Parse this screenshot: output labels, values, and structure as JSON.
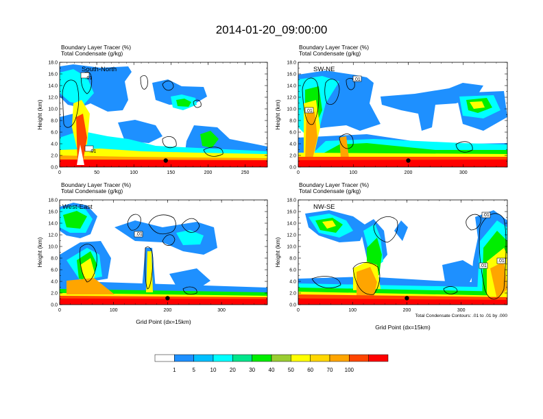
{
  "figure": {
    "title": "2014-01-20_09:00:00",
    "note": "Total Condensate Contours: .01 to .01 by .000"
  },
  "panels": [
    {
      "id": "sn",
      "sector": "South-North",
      "subtitle1": "Boundary Layer Tracer    (%)",
      "subtitle2": "Total Condensate   (g/kg)",
      "ylabel": "Height (km)",
      "xlabel": "",
      "xticks": [
        "0",
        "50",
        "100",
        "150",
        "200",
        "250"
      ],
      "contour_labels": [
        ".01",
        ".01"
      ]
    },
    {
      "id": "swne",
      "sector": "SW-NE",
      "subtitle1": "Boundary Layer Tracer    (%)",
      "subtitle2": "Total Condensate   (g/kg)",
      "ylabel": "Height (km)",
      "xlabel": "",
      "xticks": [
        "0",
        "100",
        "200",
        "300"
      ],
      "contour_labels": [
        ".01",
        ".01"
      ]
    },
    {
      "id": "we",
      "sector": "West-East",
      "subtitle1": "Boundary Layer Tracer    (%)",
      "subtitle2": "Total Condensate   (g/kg)",
      "ylabel": "Height (km)",
      "xlabel": "Grid Point (dx=15km)",
      "xticks": [
        "0",
        "100",
        "200",
        "300"
      ],
      "contour_labels": [
        ".01"
      ]
    },
    {
      "id": "nwse",
      "sector": "NW-SE",
      "subtitle1": "Boundary Layer Tracer    (%)",
      "subtitle2": "Total Condensate   (g/kg)",
      "ylabel": "Height (km)",
      "xlabel": "Grid Point (dx=15km)",
      "xticks": [
        "0",
        "100",
        "200",
        "300"
      ],
      "contour_labels": [
        ".01",
        ".01",
        ".01"
      ]
    }
  ],
  "yticks": [
    "0.0",
    "2.0",
    "4.0",
    "6.0",
    "8.0",
    "10.0",
    "12.0",
    "14.0",
    "16.0",
    "18.0"
  ],
  "colorbar": {
    "labels": [
      "1",
      "5",
      "10",
      "20",
      "30",
      "40",
      "50",
      "60",
      "70",
      "100"
    ],
    "colors": [
      "#ffffff",
      "#1e90ff",
      "#00bfff",
      "#00ffff",
      "#00e68c",
      "#00ee00",
      "#9acd32",
      "#ffff00",
      "#ffd700",
      "#ffa500",
      "#ff4500",
      "#ff0000"
    ]
  },
  "chart_data": [
    {
      "type": "heatmap",
      "title": "South-North",
      "xlabel": "",
      "ylabel": "Height (km)",
      "xlim": [
        0,
        280
      ],
      "ylim": [
        0,
        18
      ],
      "x_ticks": [
        0,
        50,
        100,
        150,
        200,
        250
      ],
      "y_ticks": [
        0,
        2,
        4,
        6,
        8,
        10,
        12,
        14,
        16,
        18
      ],
      "colorbar_levels": [
        1,
        5,
        10,
        20,
        30,
        40,
        50,
        60,
        70,
        100
      ],
      "features": [
        {
          "x": [
            0,
            280
          ],
          "z": [
            0,
            1.0
          ],
          "tracer_percent": 100
        },
        {
          "x": [
            20,
            40
          ],
          "z": [
            1,
            6
          ],
          "tracer_percent": 70
        },
        {
          "x": [
            0,
            100
          ],
          "z": [
            13,
            17
          ],
          "tracer_percent": 5
        },
        {
          "x": [
            130,
            200
          ],
          "z": [
            9,
            14
          ],
          "tracer_percent": 5
        },
        {
          "x": [
            160,
            190
          ],
          "z": [
            10,
            11.5
          ],
          "tracer_percent": 40
        },
        {
          "x": [
            180,
            280
          ],
          "z": [
            1,
            7
          ],
          "tracer_percent": 20
        }
      ],
      "marker": {
        "x": 143,
        "z": 1.0
      }
    },
    {
      "type": "heatmap",
      "title": "SW-NE",
      "xlabel": "",
      "ylabel": "Height (km)",
      "xlim": [
        0,
        380
      ],
      "ylim": [
        0,
        18
      ],
      "x_ticks": [
        0,
        100,
        200,
        300
      ],
      "y_ticks": [
        0,
        2,
        4,
        6,
        8,
        10,
        12,
        14,
        16,
        18
      ],
      "colorbar_levels": [
        1,
        5,
        10,
        20,
        30,
        40,
        50,
        60,
        70,
        100
      ],
      "features": [
        {
          "x": [
            0,
            380
          ],
          "z": [
            0,
            1.0
          ],
          "tracer_percent": 100
        },
        {
          "x": [
            10,
            50
          ],
          "z": [
            1,
            10
          ],
          "tracer_percent": 60
        },
        {
          "x": [
            0,
            140
          ],
          "z": [
            12,
            17
          ],
          "tracer_percent": 5
        },
        {
          "x": [
            250,
            350
          ],
          "z": [
            9,
            14
          ],
          "tracer_percent": 20
        },
        {
          "x": [
            300,
            380
          ],
          "z": [
            1,
            4
          ],
          "tracer_percent": 30
        }
      ],
      "marker": {
        "x": 200,
        "z": 1.0
      }
    },
    {
      "type": "heatmap",
      "title": "West-East",
      "xlabel": "Grid Point (dx=15km)",
      "ylabel": "Height (km)",
      "xlim": [
        0,
        385
      ],
      "ylim": [
        0,
        18
      ],
      "x_ticks": [
        0,
        100,
        200,
        300
      ],
      "y_ticks": [
        0,
        2,
        4,
        6,
        8,
        10,
        12,
        14,
        16,
        18
      ],
      "colorbar_levels": [
        1,
        5,
        10,
        20,
        30,
        40,
        50,
        60,
        70,
        100
      ],
      "features": [
        {
          "x": [
            0,
            385
          ],
          "z": [
            0,
            1.0
          ],
          "tracer_percent": 100
        },
        {
          "x": [
            20,
            60
          ],
          "z": [
            1,
            9
          ],
          "tracer_percent": 60
        },
        {
          "x": [
            0,
            70
          ],
          "z": [
            12,
            17
          ],
          "tracer_percent": 20
        },
        {
          "x": [
            130,
            140
          ],
          "z": [
            1,
            9
          ],
          "tracer_percent": 50
        },
        {
          "x": [
            160,
            240
          ],
          "z": [
            9,
            14
          ],
          "tracer_percent": 10
        }
      ],
      "marker": {
        "x": 200,
        "z": 1.0
      }
    },
    {
      "type": "heatmap",
      "title": "NW-SE",
      "xlabel": "Grid Point (dx=15km)",
      "ylabel": "Height (km)",
      "xlim": [
        0,
        385
      ],
      "ylim": [
        0,
        18
      ],
      "x_ticks": [
        0,
        100,
        200,
        300
      ],
      "y_ticks": [
        0,
        2,
        4,
        6,
        8,
        10,
        12,
        14,
        16,
        18
      ],
      "colorbar_levels": [
        1,
        5,
        10,
        20,
        30,
        40,
        50,
        60,
        70,
        100
      ],
      "features": [
        {
          "x": [
            0,
            385
          ],
          "z": [
            0,
            1.0
          ],
          "tracer_percent": 100
        },
        {
          "x": [
            100,
            150
          ],
          "z": [
            1,
            14
          ],
          "tracer_percent": 50
        },
        {
          "x": [
            20,
            110
          ],
          "z": [
            12,
            15
          ],
          "tracer_percent": 20
        },
        {
          "x": [
            320,
            385
          ],
          "z": [
            1,
            17
          ],
          "tracer_percent": 40
        },
        {
          "x": [
            200,
            320
          ],
          "z": [
            1,
            5
          ],
          "tracer_percent": 10
        }
      ],
      "marker": {
        "x": 200,
        "z": 1.0
      }
    }
  ]
}
